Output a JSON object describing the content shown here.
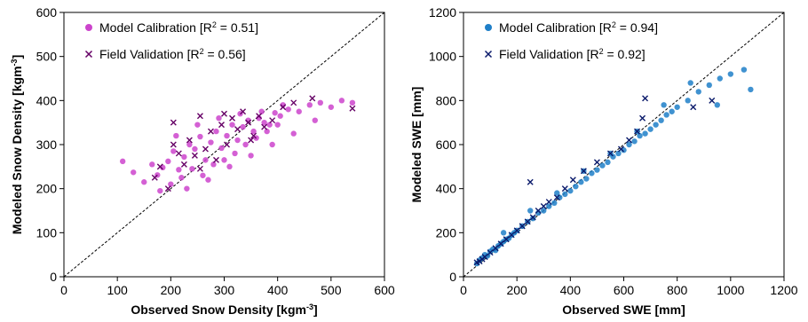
{
  "chart_data": [
    {
      "type": "scatter",
      "xlabel": "Observed Snow Density [kgm",
      "xlabel_sup": "-3",
      "xlabel_end": "]",
      "ylabel": "Modeled Snow Density [kgm",
      "ylabel_sup": "-3",
      "ylabel_end": "]",
      "xlim": [
        0,
        600
      ],
      "ylim": [
        0,
        600
      ],
      "xticks": [
        "0",
        "100",
        "200",
        "300",
        "400",
        "500",
        "600"
      ],
      "yticks": [
        "0",
        "100",
        "200",
        "300",
        "400",
        "500",
        "600"
      ],
      "one_to_one_line": true,
      "legend_position": "top-left",
      "series": [
        {
          "name": "Model Calibration [R",
          "name_sup": "2",
          "name_end": " = 0.51]",
          "marker": "circle",
          "color": "#cc44cc",
          "x": [
            110,
            130,
            150,
            165,
            175,
            185,
            195,
            205,
            215,
            225,
            235,
            245,
            255,
            265,
            275,
            285,
            295,
            305,
            315,
            325,
            335,
            345,
            355,
            365,
            375,
            385,
            395,
            405,
            420,
            440,
            460,
            480,
            500,
            520,
            540,
            200,
            220,
            240,
            260,
            280,
            300,
            320,
            340,
            360,
            380,
            400,
            180,
            230,
            270,
            310,
            350,
            390,
            430,
            470,
            210,
            250,
            290,
            330,
            370,
            410
          ],
          "y": [
            262,
            237,
            215,
            255,
            231,
            248,
            262,
            285,
            243,
            272,
            300,
            290,
            318,
            265,
            305,
            330,
            292,
            320,
            345,
            310,
            340,
            355,
            330,
            360,
            350,
            345,
            372,
            365,
            380,
            375,
            390,
            395,
            385,
            400,
            395,
            210,
            225,
            245,
            230,
            255,
            265,
            280,
            300,
            315,
            330,
            345,
            195,
            200,
            220,
            250,
            275,
            300,
            325,
            355,
            320,
            345,
            360,
            370,
            375,
            390
          ]
        },
        {
          "name": "Field Validation [R",
          "name_sup": "2",
          "name_end": " = 0.56]",
          "marker": "x",
          "color": "#660066",
          "x": [
            170,
            180,
            195,
            205,
            215,
            225,
            235,
            245,
            255,
            265,
            275,
            285,
            295,
            305,
            315,
            325,
            335,
            345,
            355,
            365,
            375,
            390,
            410,
            430,
            465,
            540,
            205,
            255,
            300,
            350
          ],
          "y": [
            225,
            250,
            200,
            350,
            280,
            255,
            310,
            275,
            365,
            290,
            330,
            265,
            345,
            300,
            360,
            335,
            375,
            350,
            320,
            365,
            340,
            355,
            385,
            395,
            405,
            382,
            300,
            245,
            370,
            310
          ]
        }
      ]
    },
    {
      "type": "scatter",
      "xlabel": "Observed SWE [mm]",
      "ylabel": "Modeled SWE [mm]",
      "xlim": [
        0,
        1200
      ],
      "ylim": [
        0,
        1200
      ],
      "xticks": [
        "0",
        "200",
        "400",
        "600",
        "800",
        "1000",
        "1200"
      ],
      "yticks": [
        "0",
        "200",
        "400",
        "600",
        "800",
        "1000",
        "1200"
      ],
      "one_to_one_line": true,
      "legend_position": "top-left",
      "series": [
        {
          "name": "Model Calibration [R",
          "name_sup": "2",
          "name_end": " = 0.94]",
          "marker": "circle",
          "color": "#1f7fc8",
          "x": [
            50,
            60,
            70,
            80,
            90,
            100,
            110,
            120,
            130,
            140,
            150,
            160,
            170,
            180,
            190,
            200,
            220,
            240,
            260,
            280,
            300,
            320,
            340,
            360,
            380,
            400,
            420,
            440,
            460,
            480,
            500,
            520,
            540,
            560,
            580,
            600,
            620,
            640,
            660,
            680,
            700,
            720,
            740,
            760,
            780,
            800,
            840,
            880,
            920,
            960,
            1000,
            1050,
            1075,
            150,
            250,
            350,
            450,
            550,
            650,
            750,
            850,
            950
          ],
          "y": [
            60,
            75,
            85,
            100,
            95,
            115,
            125,
            120,
            140,
            150,
            160,
            170,
            175,
            190,
            200,
            210,
            230,
            250,
            265,
            290,
            300,
            320,
            335,
            360,
            375,
            390,
            410,
            430,
            445,
            470,
            485,
            505,
            520,
            545,
            560,
            575,
            600,
            615,
            640,
            650,
            670,
            690,
            710,
            735,
            750,
            770,
            800,
            840,
            870,
            900,
            920,
            940,
            850,
            200,
            300,
            380,
            480,
            560,
            660,
            780,
            880,
            780
          ]
        },
        {
          "name": "Field Validation [R",
          "name_sup": "2",
          "name_end": " = 0.92]",
          "marker": "x",
          "color": "#0a1a6b",
          "x": [
            50,
            60,
            70,
            80,
            100,
            120,
            140,
            160,
            180,
            200,
            220,
            240,
            260,
            280,
            300,
            320,
            350,
            380,
            410,
            450,
            500,
            550,
            590,
            620,
            650,
            670,
            680,
            860,
            930,
            250
          ],
          "y": [
            65,
            70,
            80,
            90,
            110,
            130,
            150,
            170,
            190,
            210,
            230,
            250,
            270,
            300,
            320,
            340,
            360,
            400,
            440,
            480,
            520,
            560,
            580,
            620,
            660,
            720,
            810,
            770,
            800,
            430
          ]
        }
      ]
    }
  ]
}
